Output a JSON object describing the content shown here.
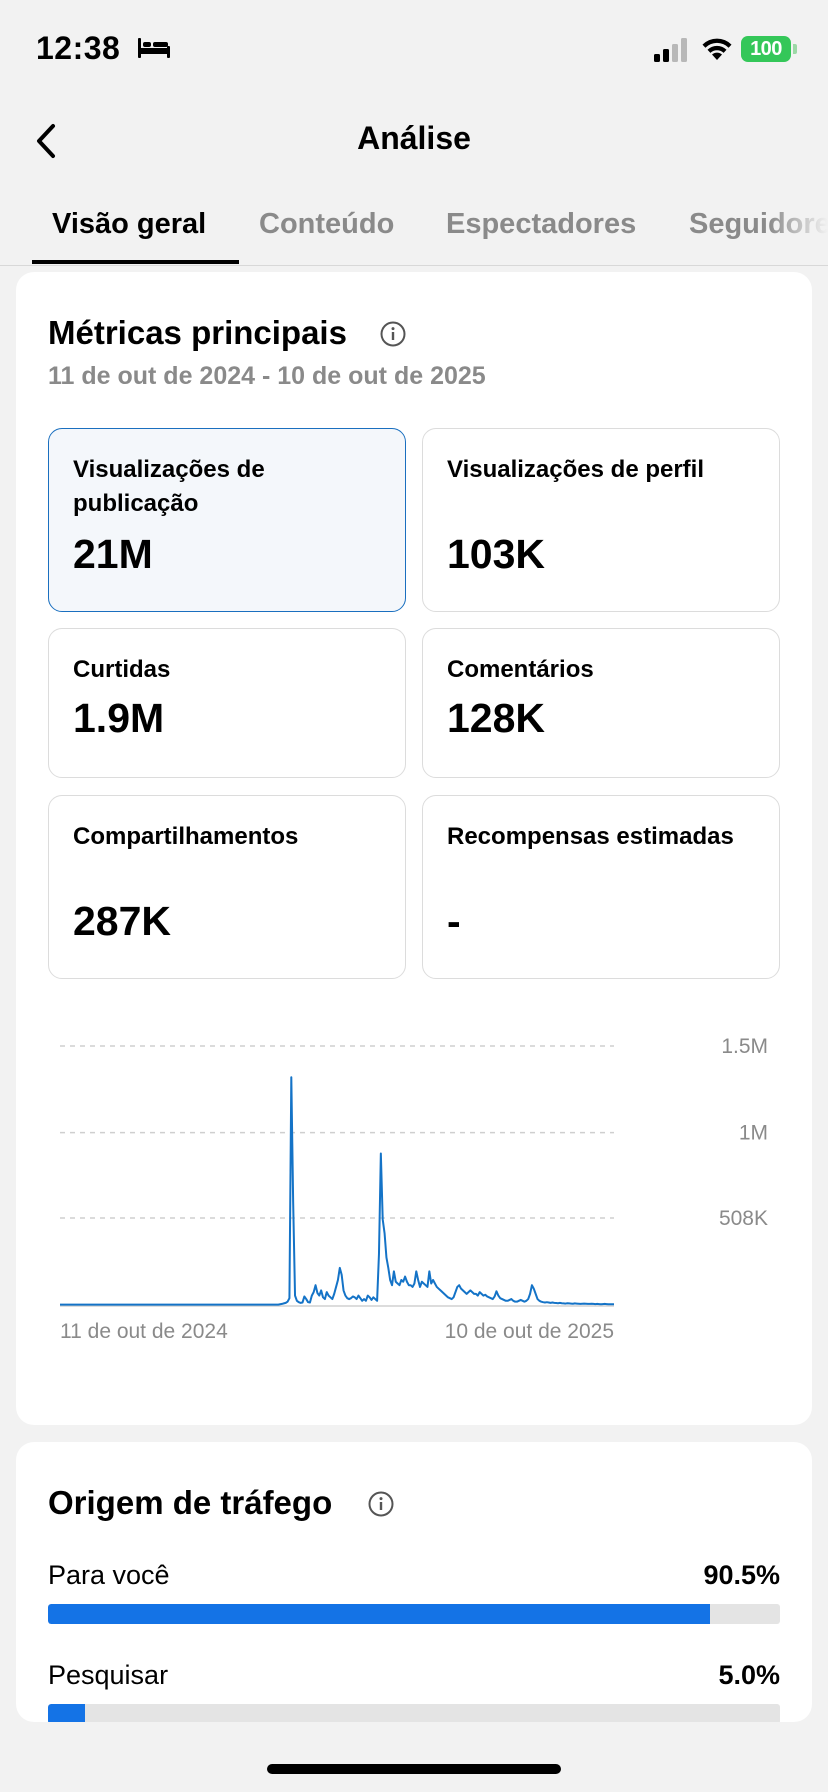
{
  "status_bar": {
    "time": "12:38",
    "battery": "100",
    "icons": [
      "bed-icon",
      "signal-icon",
      "wifi-icon",
      "battery-icon"
    ],
    "battery_color": "#34c759"
  },
  "header": {
    "back_icon": "chevron-left-icon",
    "title": "Análise"
  },
  "tabs": [
    {
      "label": "Visão geral",
      "active": true
    },
    {
      "label": "Conteúdo",
      "active": false
    },
    {
      "label": "Espectadores",
      "active": false
    },
    {
      "label": "Seguidores",
      "active": false
    }
  ],
  "metrics_section": {
    "title": "Métricas principais",
    "info_icon": "info-icon",
    "date_range": "11 de out de 2024 - 10 de out de 2025",
    "cards": [
      {
        "label": "Visualizações de publicação",
        "value": "21M",
        "selected": true
      },
      {
        "label": "Visualizações de perfil",
        "value": "103K",
        "selected": false
      },
      {
        "label": "Curtidas",
        "value": "1.9M",
        "selected": false
      },
      {
        "label": "Comentários",
        "value": "128K",
        "selected": false
      },
      {
        "label": "Compartilhamentos",
        "value": "287K",
        "selected": false
      },
      {
        "label": "Recompensas estimadas",
        "value": "-",
        "selected": false
      }
    ]
  },
  "chart_data": {
    "type": "line",
    "title": "",
    "xlabel": "",
    "ylabel": "",
    "x_labels": [
      "11 de out de 2024",
      "10 de out de 2025"
    ],
    "y_ticks": [
      {
        "value": 1500000,
        "label": "1.5M"
      },
      {
        "value": 1000000,
        "label": "1M"
      },
      {
        "value": 508000,
        "label": "508K"
      }
    ],
    "ylim": [
      0,
      1500000
    ],
    "grid": true,
    "line_color": "#1473c7",
    "series": [
      {
        "values": [
          8000,
          8000,
          8000,
          8000,
          8000,
          8000,
          8000,
          8000,
          8000,
          8000,
          8000,
          8000,
          8000,
          8000,
          8000,
          8000,
          8000,
          8000,
          8000,
          8000,
          8000,
          8000,
          8000,
          8000,
          8000,
          8000,
          8000,
          8000,
          8000,
          8000,
          8000,
          8000,
          8000,
          8000,
          8000,
          8000,
          8000,
          8000,
          8000,
          8000,
          8000,
          8000,
          8000,
          8000,
          8000,
          8000,
          8000,
          8000,
          8000,
          8000,
          8000,
          8000,
          8000,
          8000,
          8000,
          8000,
          8000,
          8000,
          8000,
          8000,
          8000,
          8000,
          8000,
          8000,
          8000,
          8000,
          8000,
          8000,
          8000,
          8000,
          8000,
          8000,
          8000,
          8000,
          8000,
          8000,
          8000,
          8000,
          8000,
          8000,
          8000,
          8000,
          8000,
          8000,
          8000,
          8000,
          8000,
          8000,
          8000,
          8000,
          8000,
          8000,
          8000,
          8000,
          8000,
          8000,
          8000,
          8000,
          8000,
          8000,
          8000,
          8000,
          8000,
          8000,
          8000,
          8000,
          8000,
          8000,
          8000,
          8000,
          8000,
          8000,
          8000,
          8000,
          8000,
          8000,
          8000,
          8000,
          10000,
          12000,
          15000,
          18000,
          25000,
          45000,
          1320000,
          600000,
          60000,
          30000,
          22000,
          18000,
          20000,
          55000,
          40000,
          22000,
          20000,
          60000,
          80000,
          120000,
          75000,
          60000,
          90000,
          50000,
          40000,
          80000,
          60000,
          50000,
          40000,
          70000,
          110000,
          150000,
          220000,
          180000,
          90000,
          60000,
          45000,
          40000,
          45000,
          55000,
          50000,
          40000,
          60000,
          45000,
          30000,
          40000,
          30000,
          60000,
          50000,
          35000,
          50000,
          40000,
          30000,
          300000,
          880000,
          500000,
          420000,
          280000,
          220000,
          150000,
          120000,
          200000,
          140000,
          130000,
          120000,
          150000,
          140000,
          170000,
          140000,
          120000,
          120000,
          110000,
          130000,
          200000,
          150000,
          110000,
          140000,
          130000,
          120000,
          110000,
          200000,
          130000,
          150000,
          130000,
          110000,
          100000,
          90000,
          80000,
          70000,
          60000,
          50000,
          45000,
          40000,
          50000,
          80000,
          110000,
          120000,
          100000,
          90000,
          80000,
          70000,
          80000,
          90000,
          80000,
          70000,
          70000,
          60000,
          80000,
          70000,
          60000,
          65000,
          55000,
          50000,
          45000,
          40000,
          55000,
          85000,
          60000,
          45000,
          40000,
          35000,
          30000,
          30000,
          35000,
          40000,
          30000,
          25000,
          25000,
          30000,
          35000,
          30000,
          25000,
          30000,
          40000,
          70000,
          120000,
          100000,
          70000,
          40000,
          30000,
          25000,
          22000,
          20000,
          22000,
          20000,
          18000,
          20000,
          18000,
          17000,
          16000,
          18000,
          16000,
          15000,
          14000,
          16000,
          15000,
          14000,
          13000,
          15000,
          14000,
          13000,
          12000,
          13000,
          14000,
          13000,
          12000,
          12000,
          13000,
          12000,
          11000,
          12000,
          11000,
          10000,
          11000,
          12000,
          11000,
          10000,
          10000,
          10000,
          10000
        ]
      }
    ]
  },
  "traffic_section": {
    "title": "Origem de tráfego",
    "info_icon": "info-icon",
    "rows": [
      {
        "label": "Para você",
        "value": "90.5%",
        "percent": 90.5
      },
      {
        "label": "Pesquisar",
        "value": "5.0%",
        "percent": 5.0
      }
    ]
  },
  "colors": {
    "accent": "#1473e6",
    "selected_border": "#1a6fbf",
    "selected_bg": "#f4f7fb",
    "muted_text": "#8a8a8a"
  }
}
